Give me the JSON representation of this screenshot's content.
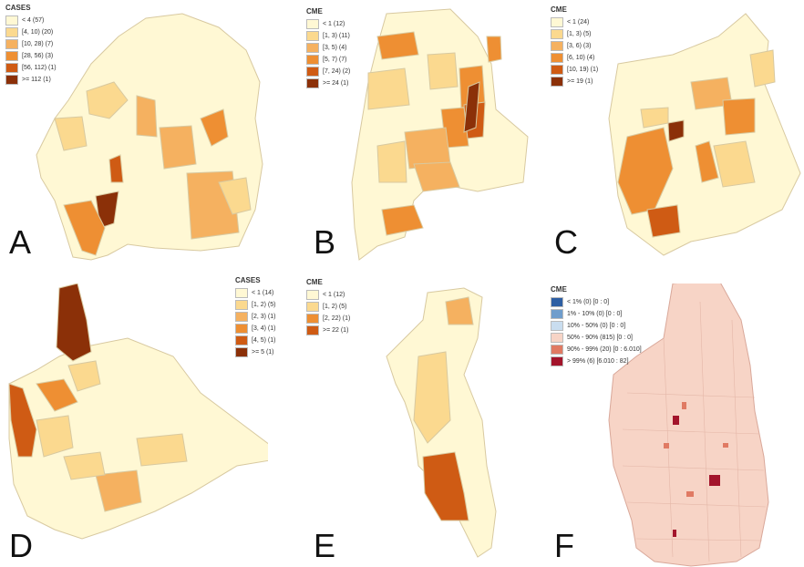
{
  "panels": [
    {
      "letter": "A",
      "legend_title": "CASES",
      "legend": [
        {
          "label": "< 4 (57)",
          "color": "#fff8d4"
        },
        {
          "label": "[4, 10) (20)",
          "color": "#fbd98f"
        },
        {
          "label": "[10, 28) (7)",
          "color": "#f5b160"
        },
        {
          "label": "[28, 56) (3)",
          "color": "#ee8f33"
        },
        {
          "label": "[56, 112) (1)",
          "color": "#cf5b14"
        },
        {
          "label": ">= 112 (1)",
          "color": "#8b3008"
        }
      ]
    },
    {
      "letter": "B",
      "legend_title": "CME",
      "legend": [
        {
          "label": "< 1 (12)",
          "color": "#fff8d4"
        },
        {
          "label": "[1, 3) (11)",
          "color": "#fbd98f"
        },
        {
          "label": "[3, 5) (4)",
          "color": "#f5b160"
        },
        {
          "label": "[5, 7) (7)",
          "color": "#ee8f33"
        },
        {
          "label": "[7, 24) (2)",
          "color": "#cf5b14"
        },
        {
          "label": ">= 24 (1)",
          "color": "#8b3008"
        }
      ]
    },
    {
      "letter": "C",
      "legend_title": "CME",
      "legend": [
        {
          "label": "< 1 (24)",
          "color": "#fff8d4"
        },
        {
          "label": "[1, 3) (5)",
          "color": "#fbd98f"
        },
        {
          "label": "[3, 6) (3)",
          "color": "#f5b160"
        },
        {
          "label": "[6, 10) (4)",
          "color": "#ee8f33"
        },
        {
          "label": "[10, 19) (1)",
          "color": "#cf5b14"
        },
        {
          "label": ">= 19 (1)",
          "color": "#8b3008"
        }
      ]
    },
    {
      "letter": "D",
      "legend_title": "CASES",
      "legend": [
        {
          "label": "< 1 (14)",
          "color": "#fff8d4"
        },
        {
          "label": "[1, 2) (5)",
          "color": "#fbd98f"
        },
        {
          "label": "[2, 3) (1)",
          "color": "#f5b160"
        },
        {
          "label": "[3, 4) (1)",
          "color": "#ee8f33"
        },
        {
          "label": "[4, 5) (1)",
          "color": "#cf5b14"
        },
        {
          "label": ">= 5 (1)",
          "color": "#8b3008"
        }
      ]
    },
    {
      "letter": "E",
      "legend_title": "CME",
      "legend": [
        {
          "label": "< 1 (12)",
          "color": "#fff8d4"
        },
        {
          "label": "[1, 2) (5)",
          "color": "#fbd98f"
        },
        {
          "label": "[2, 22) (1)",
          "color": "#ee8f33"
        },
        {
          "label": ">= 22 (1)",
          "color": "#cf5b14"
        }
      ]
    },
    {
      "letter": "F",
      "legend_title": "CME",
      "legend": [
        {
          "label": "< 1% (0) [0 : 0]",
          "color": "#2e5fa3"
        },
        {
          "label": "1% - 10% (0) [0 : 0]",
          "color": "#6f9dcc"
        },
        {
          "label": "10% - 50% (0) [0 : 0]",
          "color": "#c9ddef"
        },
        {
          "label": "50% - 90% (815) [0 : 0]",
          "color": "#f7d4c6"
        },
        {
          "label": "90% - 99% (20) [0 : 6.010]",
          "color": "#e07a63"
        },
        {
          "label": "> 99% (6) [6.010 : 82]",
          "color": "#a3142b"
        }
      ]
    }
  ]
}
